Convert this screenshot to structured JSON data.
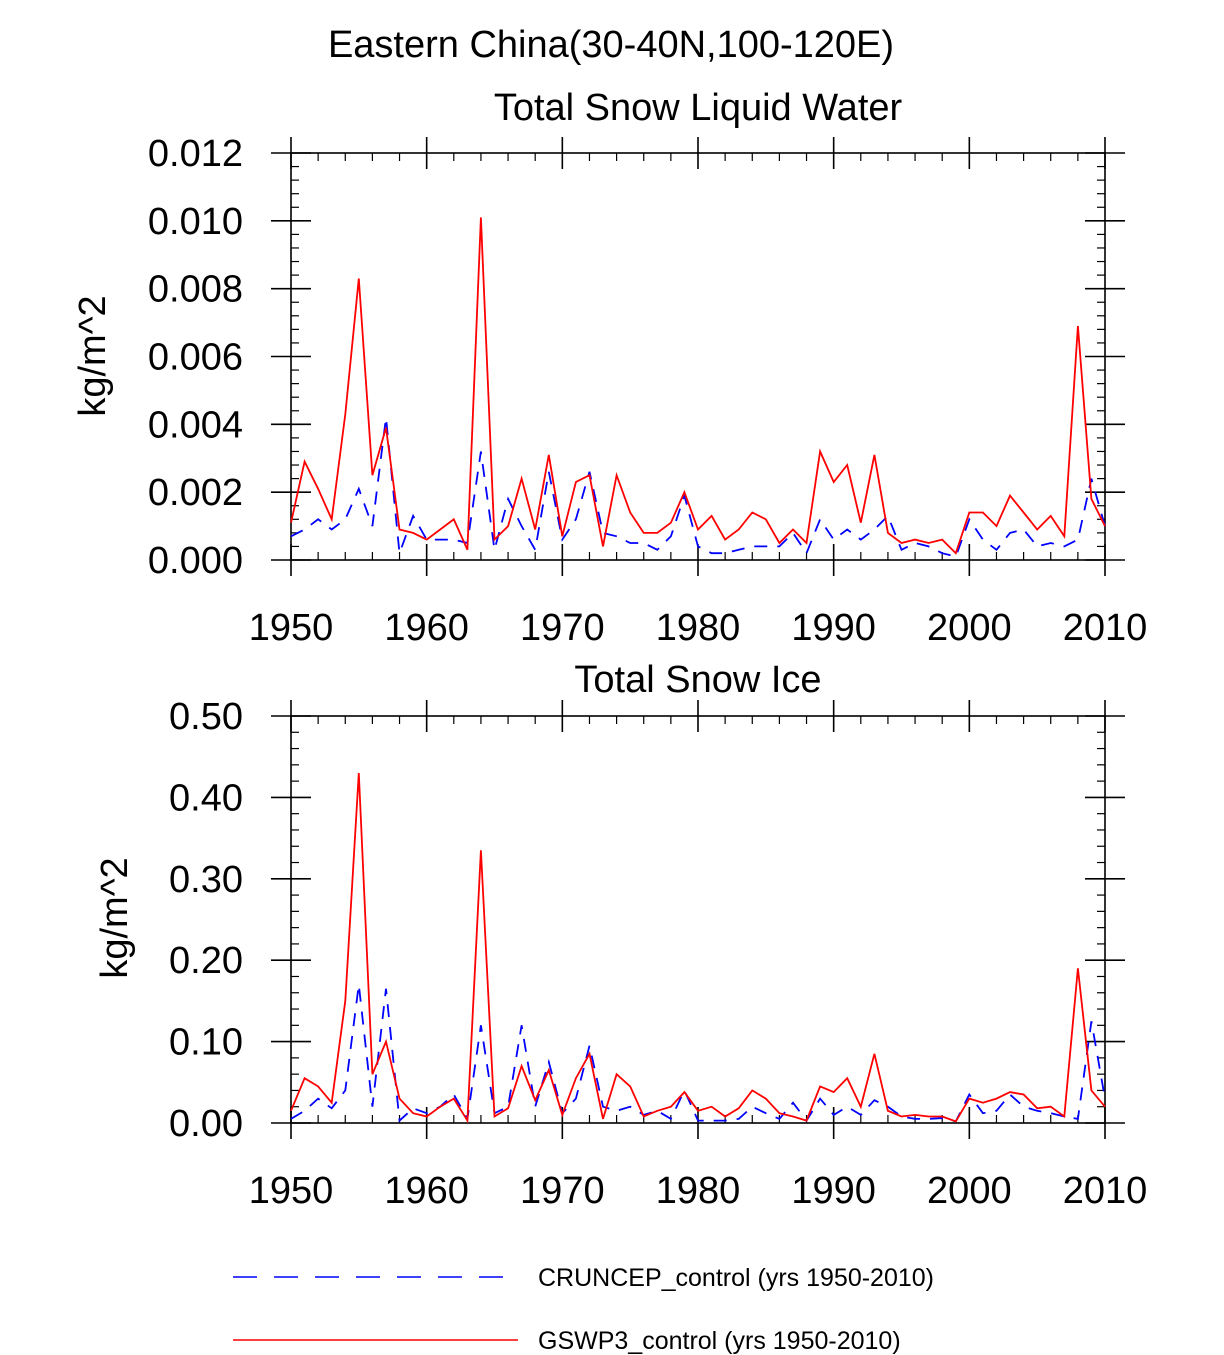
{
  "figure_title": "Eastern China(30-40N,100-120E)",
  "legend": {
    "entries": [
      {
        "label": "CRUNCEP_control (yrs 1950-2010)",
        "color": "#0000ff",
        "style": "dashed"
      },
      {
        "label": "GSWP3_control (yrs 1950-2010)",
        "color": "#ff0000",
        "style": "solid"
      }
    ]
  },
  "chart_data": [
    {
      "type": "line",
      "title": "Total Snow Liquid Water",
      "xlabel": "",
      "ylabel": "kg/m^2",
      "xlim": [
        1950,
        2010
      ],
      "ylim": [
        0,
        0.012
      ],
      "xticks": [
        1950,
        1960,
        1970,
        1980,
        1990,
        2000,
        2010
      ],
      "xtick_labels": [
        "1950",
        "1960",
        "1970",
        "1980",
        "1990",
        "2000",
        "2010"
      ],
      "yticks": [
        0,
        0.002,
        0.004,
        0.006,
        0.008,
        0.01,
        0.012
      ],
      "ytick_labels": [
        "0.000",
        "0.002",
        "0.004",
        "0.006",
        "0.008",
        "0.010",
        "0.012"
      ],
      "x_start": 1950,
      "series": [
        {
          "name": "CRUNCEP_control (yrs 1950-2010)",
          "color": "#0000ff",
          "style": "dashed",
          "values": [
            0.0007,
            0.0009,
            0.0012,
            0.0009,
            0.0012,
            0.0021,
            0.001,
            0.0042,
            0.0002,
            0.0013,
            0.0006,
            0.0006,
            0.0006,
            0.0005,
            0.0032,
            0.0003,
            0.0018,
            0.001,
            0.0003,
            0.0026,
            0.0006,
            0.0012,
            0.0026,
            0.0008,
            0.0007,
            0.0005,
            0.0005,
            0.0003,
            0.0007,
            0.0019,
            0.0004,
            0.0002,
            0.0002,
            0.0003,
            0.0004,
            0.0004,
            0.0004,
            0.0008,
            0.0002,
            0.0012,
            0.0006,
            0.0009,
            0.0006,
            0.0009,
            0.0013,
            0.0003,
            0.0005,
            0.0004,
            0.0002,
            0.0001,
            0.0012,
            0.0006,
            0.0003,
            0.0008,
            0.0009,
            0.0004,
            0.0005,
            0.0004,
            0.0006,
            0.0024,
            0.001
          ]
        },
        {
          "name": "GSWP3_control (yrs 1950-2010)",
          "color": "#ff0000",
          "style": "solid",
          "values": [
            0.0011,
            0.0029,
            0.0021,
            0.0012,
            0.0043,
            0.0083,
            0.0025,
            0.0039,
            0.0009,
            0.0008,
            0.0006,
            0.0009,
            0.0012,
            0.0003,
            0.0101,
            0.0006,
            0.001,
            0.0024,
            0.0009,
            0.0031,
            0.0007,
            0.0023,
            0.0025,
            0.0004,
            0.0025,
            0.0014,
            0.0008,
            0.0008,
            0.0011,
            0.002,
            0.0009,
            0.0013,
            0.0006,
            0.0009,
            0.0014,
            0.0012,
            0.0005,
            0.0009,
            0.0005,
            0.0032,
            0.0023,
            0.0028,
            0.0011,
            0.0031,
            0.0008,
            0.0005,
            0.0006,
            0.0005,
            0.0006,
            0.0002,
            0.0014,
            0.0014,
            0.001,
            0.0019,
            0.0014,
            0.0009,
            0.0013,
            0.0007,
            0.0069,
            0.0018,
            0.001
          ]
        }
      ]
    },
    {
      "type": "line",
      "title": "Total Snow Ice",
      "xlabel": "",
      "ylabel": "kg/m^2",
      "xlim": [
        1950,
        2010
      ],
      "ylim": [
        0,
        0.5
      ],
      "xticks": [
        1950,
        1960,
        1970,
        1980,
        1990,
        2000,
        2010
      ],
      "xtick_labels": [
        "1950",
        "1960",
        "1970",
        "1980",
        "1990",
        "2000",
        "2010"
      ],
      "yticks": [
        0,
        0.1,
        0.2,
        0.3,
        0.4,
        0.5
      ],
      "ytick_labels": [
        "0.00",
        "0.10",
        "0.20",
        "0.30",
        "0.40",
        "0.50"
      ],
      "x_start": 1950,
      "series": [
        {
          "name": "CRUNCEP_control (yrs 1950-2010)",
          "color": "#0000ff",
          "style": "dashed",
          "values": [
            0.005,
            0.015,
            0.03,
            0.018,
            0.04,
            0.17,
            0.02,
            0.165,
            0.003,
            0.018,
            0.012,
            0.02,
            0.035,
            0.005,
            0.12,
            0.012,
            0.02,
            0.12,
            0.02,
            0.075,
            0.012,
            0.03,
            0.095,
            0.02,
            0.015,
            0.02,
            0.01,
            0.015,
            0.005,
            0.04,
            0.003,
            0.003,
            0.003,
            0.005,
            0.02,
            0.012,
            0.005,
            0.025,
            0.003,
            0.03,
            0.01,
            0.02,
            0.01,
            0.028,
            0.02,
            0.008,
            0.005,
            0.005,
            0.006,
            0.002,
            0.035,
            0.012,
            0.015,
            0.035,
            0.02,
            0.015,
            0.012,
            0.008,
            0.005,
            0.125,
            0.03
          ]
        },
        {
          "name": "GSWP3_control (yrs 1950-2010)",
          "color": "#ff0000",
          "style": "solid",
          "values": [
            0.015,
            0.055,
            0.045,
            0.025,
            0.15,
            0.43,
            0.06,
            0.1,
            0.03,
            0.012,
            0.008,
            0.02,
            0.03,
            0.003,
            0.335,
            0.008,
            0.018,
            0.07,
            0.028,
            0.065,
            0.01,
            0.055,
            0.085,
            0.005,
            0.06,
            0.045,
            0.008,
            0.015,
            0.02,
            0.038,
            0.015,
            0.02,
            0.008,
            0.018,
            0.04,
            0.03,
            0.012,
            0.008,
            0.003,
            0.045,
            0.038,
            0.055,
            0.02,
            0.085,
            0.015,
            0.008,
            0.01,
            0.008,
            0.008,
            0.002,
            0.03,
            0.025,
            0.03,
            0.038,
            0.035,
            0.018,
            0.02,
            0.008,
            0.19,
            0.04,
            0.02
          ]
        }
      ]
    }
  ]
}
